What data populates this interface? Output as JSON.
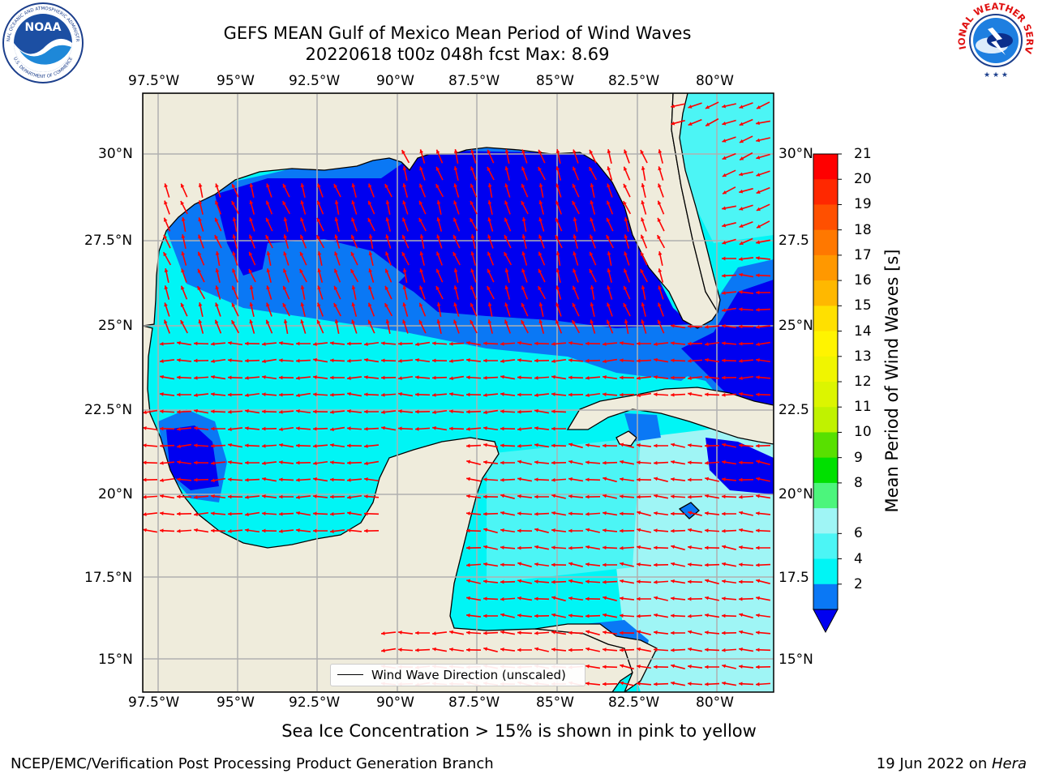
{
  "header": {
    "title_line1": "GEFS MEAN Gulf of Mexico Mean Period of Wind Waves",
    "title_line2": "20220618 t00z 048h fcst   Max: 8.69"
  },
  "logos": {
    "noaa_text": "NOAA",
    "noaa_ring_top": "NATIONAL OCEANIC AND ATMOSPHERIC ADMINISTRATION",
    "noaa_ring_bottom": "U.S. DEPARTMENT OF COMMERCE",
    "nws_ring": "NATIONAL WEATHER SERVICE"
  },
  "map": {
    "lon_labels": [
      "97.5°W",
      "95°W",
      "92.5°W",
      "90°W",
      "87.5°W",
      "85°W",
      "82.5°W",
      "80°W"
    ],
    "lat_labels_left": [
      "30°N",
      "27.5°N",
      "25°N",
      "22.5°N",
      "20°N",
      "17.5°N",
      "15°N"
    ],
    "lat_labels_right": [
      "30°N",
      "27.5",
      "25°N",
      "22.5",
      "20°N",
      "17.5",
      "15°N"
    ],
    "legend_label": "Wind Wave Direction (unscaled)",
    "colors": {
      "land": "#efecdc",
      "deep": "#0000f0",
      "blue": "#0a78f5",
      "cyan": "#00f5f5",
      "light_cyan": "#4cf5f5",
      "pale_cyan": "#9ff5f5",
      "arrow": "#ff0000",
      "grid": "#b0b0b0"
    }
  },
  "colorbar": {
    "label": "Mean Period of Wind Waves [s]",
    "ticks": [
      "21",
      "20",
      "19",
      "18",
      "17",
      "16",
      "15",
      "14",
      "13",
      "12",
      "11",
      "10",
      "9",
      "8",
      "6",
      "4",
      "2"
    ],
    "colors": [
      "#ff0000",
      "#ff2800",
      "#ff5000",
      "#ff7800",
      "#ff9800",
      "#ffb800",
      "#ffe000",
      "#fff400",
      "#f0f500",
      "#dcf500",
      "#c0f200",
      "#58e000",
      "#00e000",
      "#4cf57c",
      "#9ff5f5",
      "#4cf5f5",
      "#00f5f5",
      "#0a78f5"
    ],
    "extend_color": "#0000f0"
  },
  "footer": {
    "note": "Sea Ice Concentration > 15% is shown in pink to yellow",
    "branch": "NCEP/EMC/Verification Post Processing Product Generation Branch",
    "date": "19 Jun 2022 on ",
    "host": "Hera"
  }
}
